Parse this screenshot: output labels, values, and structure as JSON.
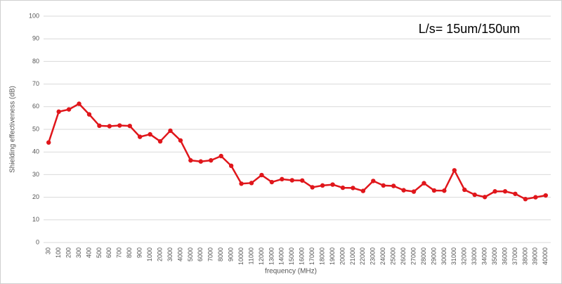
{
  "chart_data": {
    "type": "line",
    "annotation": "L/s= 15um/150um",
    "x_label": "frequency (MHz)",
    "y_label": "Shielding effectiveness (dB)",
    "categories": [
      "30",
      "100",
      "200",
      "300",
      "400",
      "500",
      "600",
      "700",
      "800",
      "900",
      "1000",
      "2000",
      "3000",
      "4000",
      "5000",
      "6000",
      "7000",
      "8000",
      "9000",
      "10000",
      "11000",
      "12000",
      "13000",
      "14000",
      "15000",
      "16000",
      "17000",
      "18000",
      "19000",
      "20000",
      "21000",
      "22000",
      "23000",
      "24000",
      "25000",
      "26000",
      "27000",
      "28000",
      "29000",
      "30000",
      "31000",
      "32000",
      "33000",
      "34000",
      "35000",
      "36000",
      "37000",
      "38000",
      "39000",
      "40000"
    ],
    "series": [
      {
        "color": "#e0161b",
        "values": [
          44.2,
          57.8,
          58.8,
          61.3,
          56.6,
          51.6,
          51.4,
          51.7,
          51.5,
          46.7,
          47.8,
          44.7,
          49.4,
          45.1,
          36.3,
          35.8,
          36.3,
          38.2,
          33.9,
          26.0,
          26.3,
          29.8,
          26.7,
          28.0,
          27.5,
          27.4,
          24.4,
          25.2,
          25.6,
          24.2,
          24.1,
          22.8,
          27.2,
          25.2,
          25.0,
          23.1,
          22.5,
          26.2,
          23.0,
          22.9,
          31.9,
          23.3,
          21.1,
          20.1,
          22.6,
          22.6,
          21.5,
          19.2,
          20.0,
          20.8
        ]
      }
    ],
    "ylim": [
      0,
      100
    ],
    "yticks": [
      0,
      10,
      20,
      30,
      40,
      50,
      60,
      70,
      80,
      90,
      100
    ],
    "grid": true
  }
}
